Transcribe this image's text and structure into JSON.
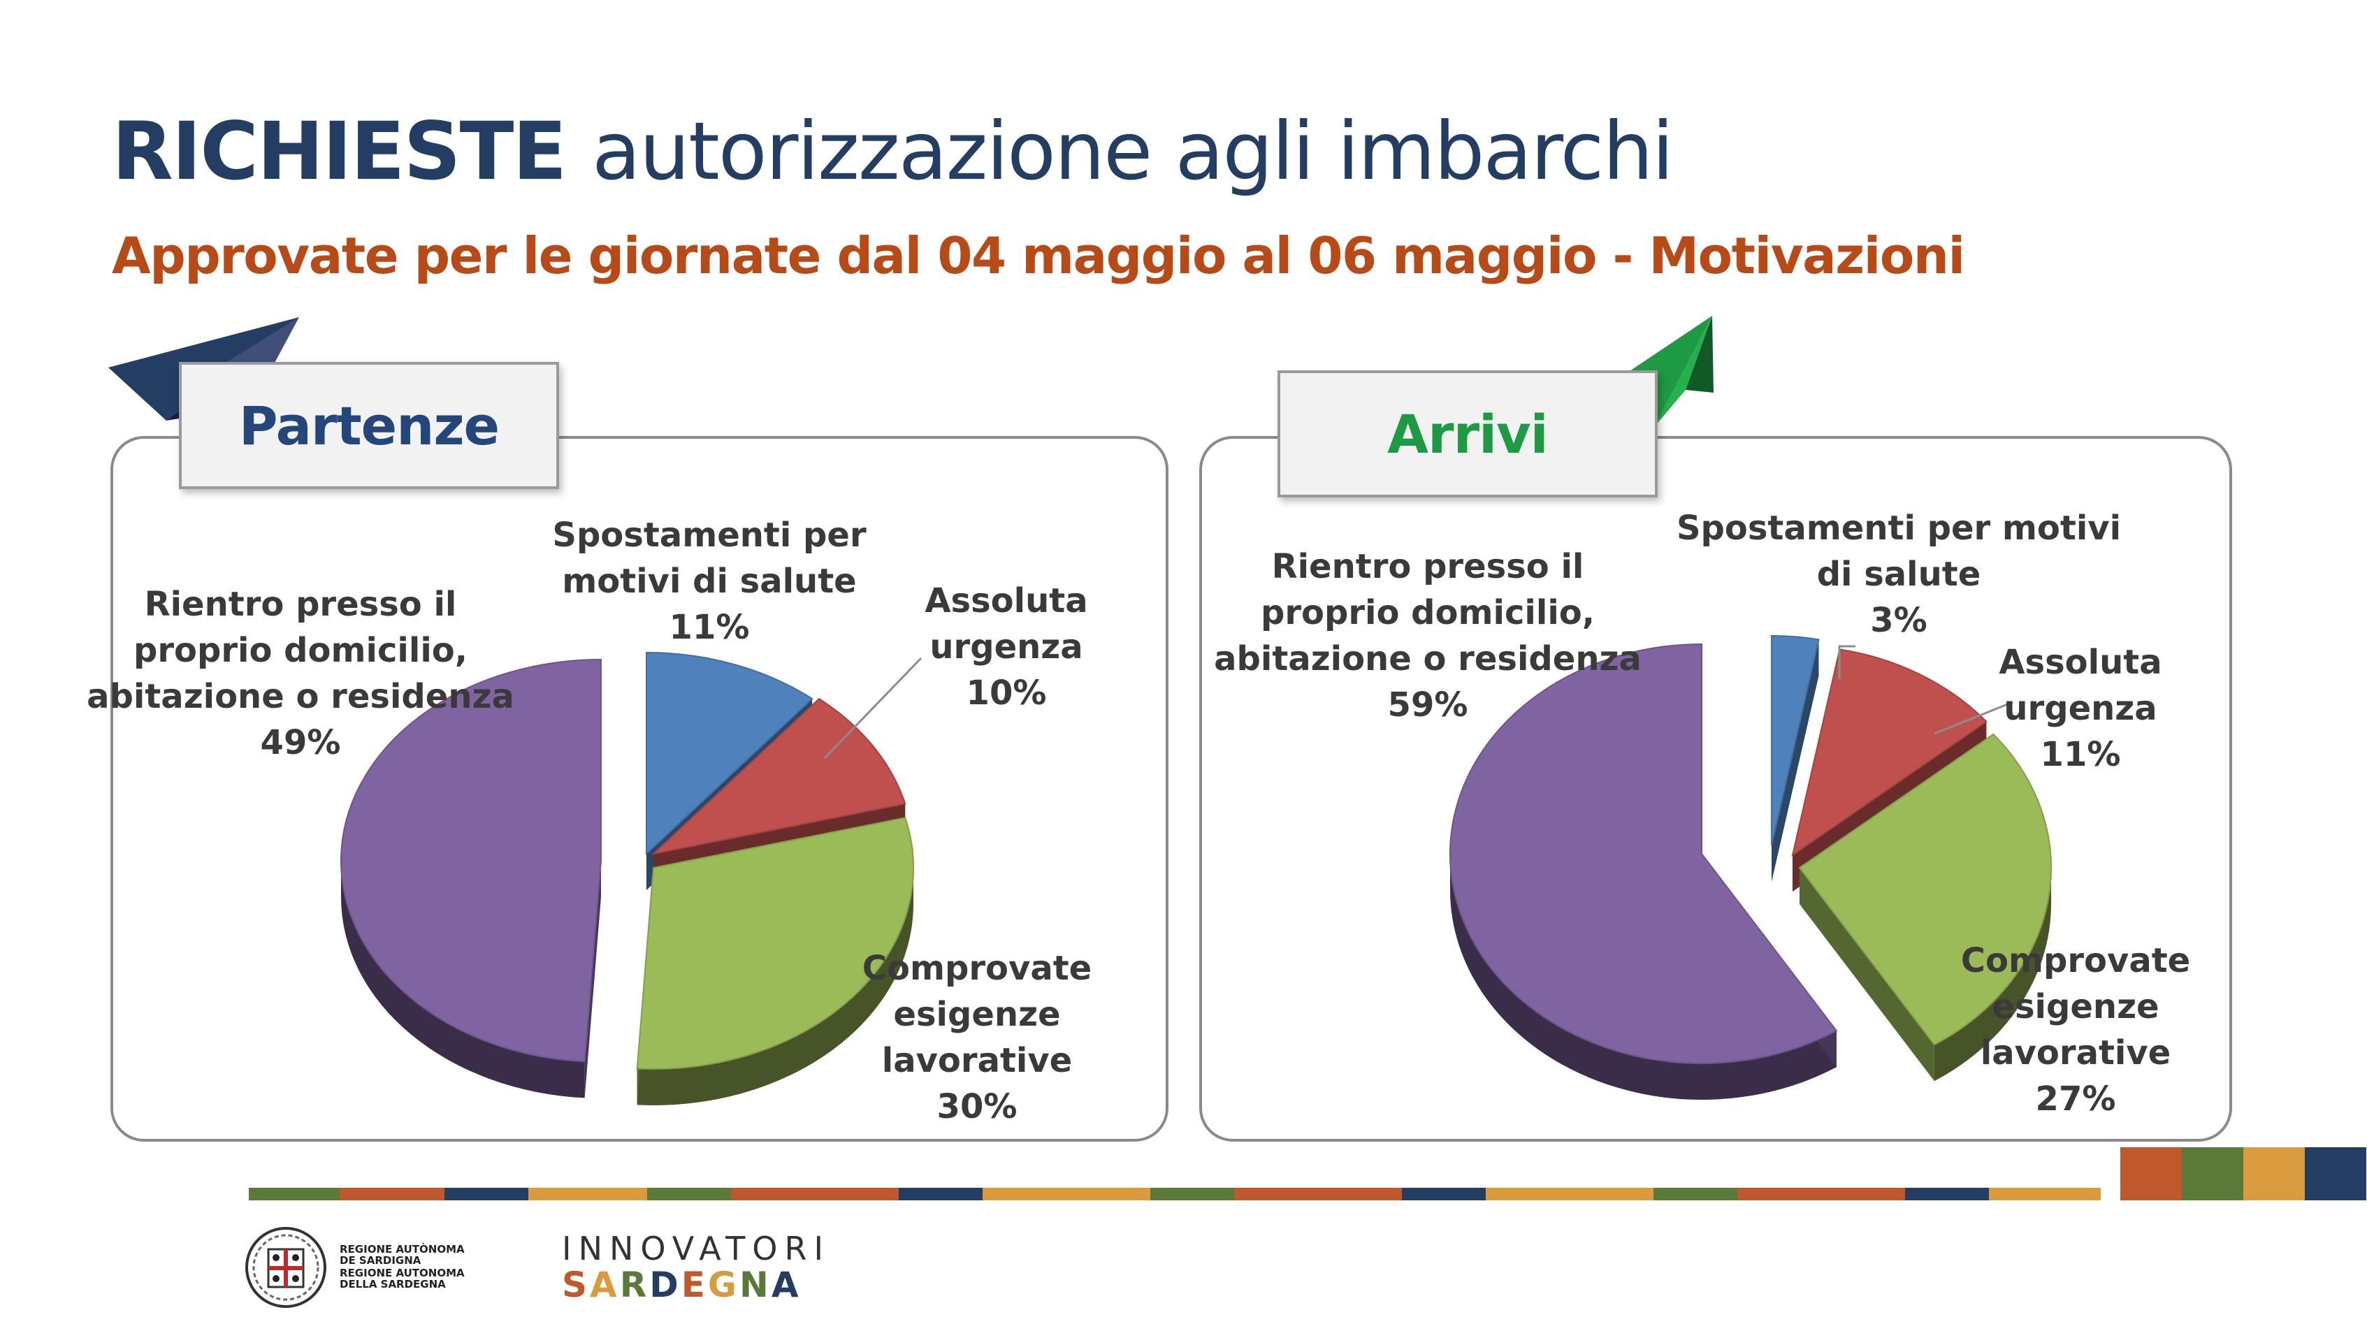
{
  "slide": {
    "title_bold": "RICHIESTE",
    "title_rest": "autorizzazione agli imbarchi",
    "subtitle_bold_1": "Approvate",
    "subtitle_mid": "per le giornate dal 04 maggio al 06 maggio",
    "subtitle_bold_2": "- Motivazioni"
  },
  "chart_data": [
    {
      "type": "pie",
      "title": "Partenze",
      "categories": [
        "Spostamenti per motivi di salute",
        "Assoluta urgenza",
        "Comprovate esigenze lavorative",
        "Rientro presso il proprio domicilio, abitazione o residenza"
      ],
      "values": [
        11,
        10,
        30,
        49
      ],
      "value_labels": [
        "11%",
        "10%",
        "30%",
        "49%"
      ],
      "label_lines": [
        [
          "Spostamenti per",
          "motivi di salute",
          "11%"
        ],
        [
          "Assoluta",
          "urgenza",
          "10%"
        ],
        [
          "Comprovate",
          "esigenze",
          "lavorative",
          "30%"
        ],
        [
          "Rientro presso il",
          "proprio domicilio,",
          "abitazione o residenza",
          "49%"
        ]
      ],
      "colors": [
        "#4f81bd",
        "#c0504d",
        "#9bbb59",
        "#8064a2"
      ],
      "legend": "none",
      "style": "3d-exploded"
    },
    {
      "type": "pie",
      "title": "Arrivi",
      "categories": [
        "Spostamenti per motivi di salute",
        "Assoluta urgenza",
        "Comprovate esigenze lavorative",
        "Rientro presso il proprio domicilio, abitazione o residenza"
      ],
      "values": [
        3,
        11,
        27,
        59
      ],
      "value_labels": [
        "3%",
        "11%",
        "27%",
        "59%"
      ],
      "label_lines": [
        [
          "Spostamenti per motivi",
          "di salute",
          "3%"
        ],
        [
          "Assoluta",
          "urgenza",
          "11%"
        ],
        [
          "Comprovate",
          "esigenze",
          "lavorative",
          "27%"
        ],
        [
          "Rientro presso il",
          "proprio domicilio,",
          "abitazione o residenza",
          "59%"
        ]
      ],
      "colors": [
        "#4f81bd",
        "#c0504d",
        "#9bbb59",
        "#8064a2"
      ],
      "legend": "none",
      "style": "3d-exploded"
    }
  ],
  "footer": {
    "region_lines": [
      "REGIONE AUTÒNOMA",
      "DE SARDIGNA",
      "REGIONE AUTONOMA",
      "DELLA SARDEGNA"
    ],
    "innovatori": "INNOVATORI",
    "sardegna_letters": [
      "S",
      "A",
      "R",
      "D",
      "E",
      "G",
      "N",
      "A"
    ],
    "sardegna_colors": [
      "#c0582e",
      "#d99b3e",
      "#5b7a3a",
      "#233d63",
      "#c0582e",
      "#d99b3e",
      "#5b7a3a",
      "#233d63"
    ],
    "stripe_colors": [
      "#5b7a3a",
      "#c0582e",
      "#233d63",
      "#d99b3e"
    ],
    "corner_colors": [
      "#c0582e",
      "#5b7a3a",
      "#d99b3e",
      "#233d63"
    ]
  }
}
